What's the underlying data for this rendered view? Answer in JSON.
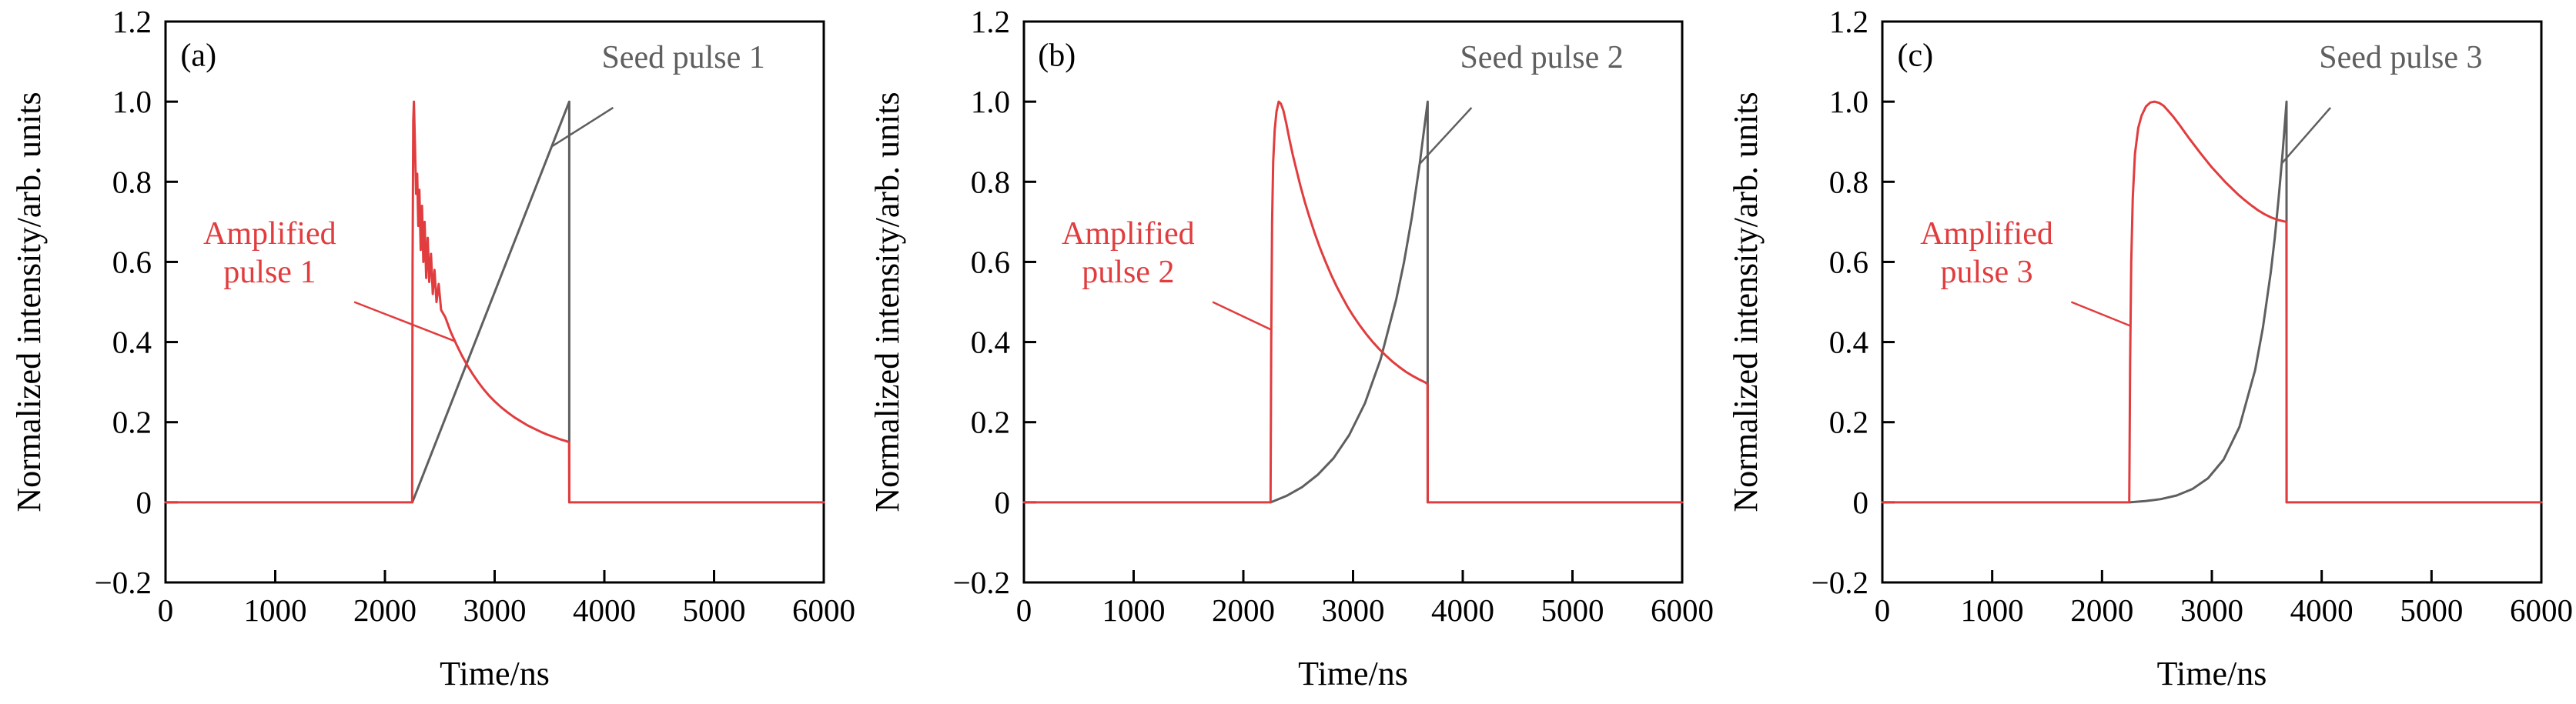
{
  "figure": {
    "background": "#ffffff",
    "axis_color": "#000000",
    "seed_color": "#5f5f5f",
    "amplified_color": "#e13c3e"
  },
  "chart_data": [
    {
      "type": "line",
      "panel_label": "(a)",
      "panel_label_x": 300,
      "panel_label_y": 1.09,
      "xlabel": "Time/ns",
      "ylabel": "Normalized intensity/arb. units",
      "xlim": [
        0,
        6000
      ],
      "ylim": [
        -0.2,
        1.2
      ],
      "grid": false,
      "xticks": {
        "values": [
          0,
          1000,
          2000,
          3000,
          4000,
          5000,
          6000
        ],
        "labels": [
          "0",
          "1000",
          "2000",
          "3000",
          "4000",
          "5000",
          "6000"
        ]
      },
      "yticks": {
        "values": [
          1.2,
          1.0,
          0.8,
          0.6,
          0.4,
          0.2,
          0,
          -0.2
        ],
        "labels": [
          "1.2",
          "1.0",
          "0.8",
          "0.6",
          "0.4",
          "0.2",
          "0",
          "−0.2"
        ]
      },
      "series": [
        {
          "name": "Seed pulse 1",
          "color": "#5f5f5f",
          "points": [
            [
              2250,
              0
            ],
            [
              3680,
              1.0
            ],
            [
              3680,
              0
            ]
          ]
        },
        {
          "name": "Amplified pulse 1",
          "color": "#e13c3e",
          "points": [
            [
              0,
              0
            ],
            [
              2248,
              0
            ],
            [
              2252,
              0.6
            ],
            [
              2258,
              0.95
            ],
            [
              2264,
              1.0
            ],
            [
              2274,
              0.89
            ],
            [
              2284,
              0.77
            ],
            [
              2294,
              0.82
            ],
            [
              2304,
              0.69
            ],
            [
              2314,
              0.78
            ],
            [
              2326,
              0.63
            ],
            [
              2338,
              0.74
            ],
            [
              2350,
              0.6
            ],
            [
              2362,
              0.7
            ],
            [
              2376,
              0.56
            ],
            [
              2390,
              0.66
            ],
            [
              2404,
              0.55
            ],
            [
              2420,
              0.62
            ],
            [
              2436,
              0.52
            ],
            [
              2452,
              0.58
            ],
            [
              2470,
              0.5
            ],
            [
              2490,
              0.545
            ],
            [
              2512,
              0.48
            ],
            [
              2550,
              0.462
            ],
            [
              2600,
              0.425
            ],
            [
              2650,
              0.395
            ],
            [
              2700,
              0.367
            ],
            [
              2750,
              0.342
            ],
            [
              2800,
              0.32
            ],
            [
              2850,
              0.3
            ],
            [
              2900,
              0.282
            ],
            [
              2950,
              0.266
            ],
            [
              3000,
              0.252
            ],
            [
              3060,
              0.237
            ],
            [
              3120,
              0.224
            ],
            [
              3180,
              0.212
            ],
            [
              3240,
              0.202
            ],
            [
              3300,
              0.192
            ],
            [
              3360,
              0.184
            ],
            [
              3420,
              0.176
            ],
            [
              3480,
              0.169
            ],
            [
              3540,
              0.163
            ],
            [
              3600,
              0.157
            ],
            [
              3660,
              0.152
            ],
            [
              3679,
              0.15
            ],
            [
              3681,
              0
            ],
            [
              6000,
              0
            ]
          ]
        }
      ],
      "annotations": [
        {
          "name": "seed-pulse-label",
          "lines": [
            "Seed pulse 1"
          ],
          "color": "#5f5f5f",
          "x": 4720,
          "y": 1.085,
          "leader": [
            [
              4080,
              0.985
            ],
            [
              3520,
              0.888
            ]
          ]
        },
        {
          "name": "amplified-pulse-label",
          "lines": [
            "Amplified",
            "pulse 1"
          ],
          "color": "#e13c3e",
          "x": 950,
          "y": 0.645,
          "leader": [
            [
              1720,
              0.5
            ],
            [
              2640,
              0.402
            ]
          ]
        }
      ]
    },
    {
      "type": "line",
      "panel_label": "(b)",
      "panel_label_x": 300,
      "panel_label_y": 1.09,
      "xlabel": "Time/ns",
      "ylabel": "Normalized intensity/arb. units",
      "xlim": [
        0,
        6000
      ],
      "ylim": [
        -0.2,
        1.2
      ],
      "grid": false,
      "xticks": {
        "values": [
          0,
          1000,
          2000,
          3000,
          4000,
          5000,
          6000
        ],
        "labels": [
          "0",
          "1000",
          "2000",
          "3000",
          "4000",
          "5000",
          "6000"
        ]
      },
      "yticks": {
        "values": [
          1.2,
          1.0,
          0.8,
          0.6,
          0.4,
          0.2,
          0,
          -0.2
        ],
        "labels": [
          "1.2",
          "1.0",
          "0.8",
          "0.6",
          "0.4",
          "0.2",
          "0",
          "−0.2"
        ]
      },
      "series": [
        {
          "name": "Seed pulse 2",
          "color": "#5f5f5f",
          "points": [
            [
              2250,
              0
            ],
            [
              2393,
              0.016
            ],
            [
              2536,
              0.038
            ],
            [
              2679,
              0.069
            ],
            [
              2822,
              0.11
            ],
            [
              2965,
              0.168
            ],
            [
              3108,
              0.247
            ],
            [
              3251,
              0.357
            ],
            [
              3394,
              0.507
            ],
            [
              3465,
              0.6
            ],
            [
              3537,
              0.713
            ],
            [
              3608,
              0.846
            ],
            [
              3680,
              1.0
            ],
            [
              3680,
              0
            ]
          ]
        },
        {
          "name": "Amplified pulse 2",
          "color": "#e13c3e",
          "points": [
            [
              0,
              0
            ],
            [
              2248,
              0
            ],
            [
              2254,
              0.4
            ],
            [
              2262,
              0.7
            ],
            [
              2272,
              0.85
            ],
            [
              2286,
              0.93
            ],
            [
              2302,
              0.975
            ],
            [
              2322,
              1.0
            ],
            [
              2342,
              0.995
            ],
            [
              2365,
              0.978
            ],
            [
              2392,
              0.945
            ],
            [
              2420,
              0.906
            ],
            [
              2450,
              0.868
            ],
            [
              2482,
              0.832
            ],
            [
              2520,
              0.79
            ],
            [
              2560,
              0.75
            ],
            [
              2600,
              0.714
            ],
            [
              2650,
              0.672
            ],
            [
              2700,
              0.634
            ],
            [
              2750,
              0.6
            ],
            [
              2800,
              0.568
            ],
            [
              2850,
              0.539
            ],
            [
              2900,
              0.513
            ],
            [
              2950,
              0.488
            ],
            [
              3000,
              0.466
            ],
            [
              3060,
              0.442
            ],
            [
              3120,
              0.42
            ],
            [
              3180,
              0.4
            ],
            [
              3240,
              0.382
            ],
            [
              3300,
              0.366
            ],
            [
              3360,
              0.351
            ],
            [
              3420,
              0.338
            ],
            [
              3480,
              0.326
            ],
            [
              3540,
              0.316
            ],
            [
              3600,
              0.307
            ],
            [
              3660,
              0.299
            ],
            [
              3679,
              0.295
            ],
            [
              3681,
              0
            ],
            [
              6000,
              0
            ]
          ]
        }
      ],
      "annotations": [
        {
          "name": "seed-pulse-label",
          "lines": [
            "Seed pulse 2"
          ],
          "color": "#5f5f5f",
          "x": 4720,
          "y": 1.085,
          "leader": [
            [
              4080,
              0.985
            ],
            [
              3608,
              0.845
            ]
          ]
        },
        {
          "name": "amplified-pulse-label",
          "lines": [
            "Amplified",
            "pulse 2"
          ],
          "color": "#e13c3e",
          "x": 950,
          "y": 0.645,
          "leader": [
            [
              1720,
              0.5
            ],
            [
              2260,
              0.43
            ]
          ]
        }
      ]
    },
    {
      "type": "line",
      "panel_label": "(c)",
      "panel_label_x": 300,
      "panel_label_y": 1.09,
      "xlabel": "Time/ns",
      "ylabel": "Normalized intensity/arb. units",
      "xlim": [
        0,
        6000
      ],
      "ylim": [
        -0.2,
        1.2
      ],
      "grid": false,
      "xticks": {
        "values": [
          0,
          1000,
          2000,
          3000,
          4000,
          5000,
          6000
        ],
        "labels": [
          "0",
          "1000",
          "2000",
          "3000",
          "4000",
          "5000",
          "6000"
        ]
      },
      "yticks": {
        "values": [
          1.2,
          1.0,
          0.8,
          0.6,
          0.4,
          0.2,
          0,
          -0.2
        ],
        "labels": [
          "1.2",
          "1.0",
          "0.8",
          "0.6",
          "0.4",
          "0.2",
          "0",
          "−0.2"
        ]
      },
      "series": [
        {
          "name": "Seed pulse 3",
          "color": "#5f5f5f",
          "points": [
            [
              2250,
              0
            ],
            [
              2393,
              0.003
            ],
            [
              2536,
              0.008
            ],
            [
              2679,
              0.017
            ],
            [
              2822,
              0.033
            ],
            [
              2965,
              0.06
            ],
            [
              3108,
              0.107
            ],
            [
              3251,
              0.188
            ],
            [
              3394,
              0.33
            ],
            [
              3465,
              0.436
            ],
            [
              3537,
              0.575
            ],
            [
              3573,
              0.66
            ],
            [
              3608,
              0.759
            ],
            [
              3644,
              0.871
            ],
            [
              3680,
              1.0
            ],
            [
              3680,
              0
            ]
          ]
        },
        {
          "name": "Amplified pulse 3",
          "color": "#e13c3e",
          "points": [
            [
              0,
              0
            ],
            [
              2248,
              0
            ],
            [
              2256,
              0.35
            ],
            [
              2266,
              0.6
            ],
            [
              2280,
              0.76
            ],
            [
              2300,
              0.87
            ],
            [
              2330,
              0.935
            ],
            [
              2360,
              0.965
            ],
            [
              2400,
              0.988
            ],
            [
              2440,
              0.998
            ],
            [
              2480,
              1.0
            ],
            [
              2520,
              0.997
            ],
            [
              2560,
              0.99
            ],
            [
              2600,
              0.978
            ],
            [
              2650,
              0.962
            ],
            [
              2700,
              0.944
            ],
            [
              2750,
              0.925
            ],
            [
              2800,
              0.906
            ],
            [
              2850,
              0.888
            ],
            [
              2900,
              0.87
            ],
            [
              2950,
              0.853
            ],
            [
              3000,
              0.836
            ],
            [
              3060,
              0.818
            ],
            [
              3120,
              0.8
            ],
            [
              3180,
              0.784
            ],
            [
              3240,
              0.768
            ],
            [
              3300,
              0.754
            ],
            [
              3360,
              0.741
            ],
            [
              3420,
              0.729
            ],
            [
              3480,
              0.719
            ],
            [
              3540,
              0.711
            ],
            [
              3600,
              0.705
            ],
            [
              3660,
              0.701
            ],
            [
              3679,
              0.7
            ],
            [
              3681,
              0
            ],
            [
              6000,
              0
            ]
          ]
        }
      ],
      "annotations": [
        {
          "name": "seed-pulse-label",
          "lines": [
            "Seed pulse 3"
          ],
          "color": "#5f5f5f",
          "x": 4720,
          "y": 1.085,
          "leader": [
            [
              4080,
              0.985
            ],
            [
              3634,
              0.845
            ]
          ]
        },
        {
          "name": "amplified-pulse-label",
          "lines": [
            "Amplified",
            "pulse 3"
          ],
          "color": "#e13c3e",
          "x": 950,
          "y": 0.645,
          "leader": [
            [
              1720,
              0.5
            ],
            [
              2262,
              0.44
            ]
          ]
        }
      ]
    }
  ]
}
